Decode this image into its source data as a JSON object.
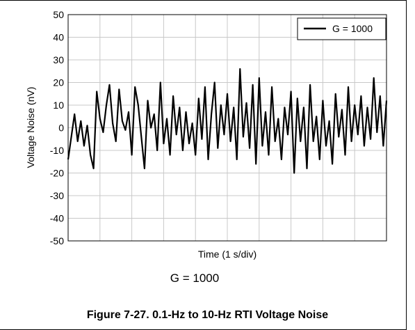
{
  "chart_data": {
    "type": "line",
    "xlabel": "Time (1 s/div)",
    "ylabel": "Voltage Noise (nV)",
    "ylim": [
      -50,
      50
    ],
    "yticks": [
      50,
      40,
      30,
      20,
      10,
      0,
      -10,
      -20,
      -30,
      -40,
      -50
    ],
    "xlim": [
      0,
      10
    ],
    "x_divisions": 10,
    "grid": true,
    "legend_position": "top-right",
    "series": [
      {
        "name": "G = 1000",
        "color": "#000000",
        "x": [
          0.0,
          0.1,
          0.2,
          0.3,
          0.4,
          0.5,
          0.6,
          0.7,
          0.8,
          0.9,
          1.0,
          1.1,
          1.2,
          1.3,
          1.4,
          1.5,
          1.6,
          1.7,
          1.8,
          1.9,
          2.0,
          2.1,
          2.2,
          2.3,
          2.4,
          2.5,
          2.6,
          2.7,
          2.8,
          2.9,
          3.0,
          3.1,
          3.2,
          3.3,
          3.4,
          3.5,
          3.6,
          3.7,
          3.8,
          3.9,
          4.0,
          4.1,
          4.2,
          4.3,
          4.4,
          4.5,
          4.6,
          4.7,
          4.8,
          4.9,
          5.0,
          5.1,
          5.2,
          5.3,
          5.4,
          5.5,
          5.6,
          5.7,
          5.8,
          5.9,
          6.0,
          6.1,
          6.2,
          6.3,
          6.4,
          6.5,
          6.6,
          6.7,
          6.8,
          6.9,
          7.0,
          7.1,
          7.2,
          7.3,
          7.4,
          7.5,
          7.6,
          7.7,
          7.8,
          7.9,
          8.0,
          8.1,
          8.2,
          8.3,
          8.4,
          8.5,
          8.6,
          8.7,
          8.8,
          8.9,
          9.0,
          9.1,
          9.2,
          9.3,
          9.4,
          9.5,
          9.6,
          9.7,
          9.8,
          9.9,
          10.0
        ],
        "values": [
          -14,
          -4,
          6,
          -6,
          3,
          -8,
          1,
          -12,
          -18,
          16,
          4,
          -2,
          10,
          19,
          2,
          -6,
          17,
          3,
          -1,
          7,
          -12,
          18,
          10,
          -4,
          -18,
          12,
          0,
          6,
          -10,
          20,
          -7,
          4,
          -12,
          14,
          -3,
          9,
          -10,
          7,
          -7,
          2,
          -12,
          13,
          -5,
          18,
          -14,
          6,
          20,
          -9,
          10,
          -3,
          15,
          -6,
          9,
          -14,
          26,
          -4,
          11,
          -9,
          19,
          -16,
          22,
          -8,
          7,
          -12,
          18,
          -6,
          4,
          -14,
          9,
          -3,
          16,
          -20,
          13,
          -6,
          9,
          -18,
          19,
          -6,
          5,
          -14,
          12,
          -8,
          3,
          -16,
          15,
          -4,
          8,
          -12,
          18,
          -6,
          10,
          -3,
          14,
          -8,
          9,
          -5,
          22,
          -2,
          14,
          -8,
          12
        ]
      }
    ]
  },
  "sub_caption": "G = 1000",
  "figure_caption": "Figure 7-27. 0.1-Hz to 10-Hz RTI Voltage Noise"
}
